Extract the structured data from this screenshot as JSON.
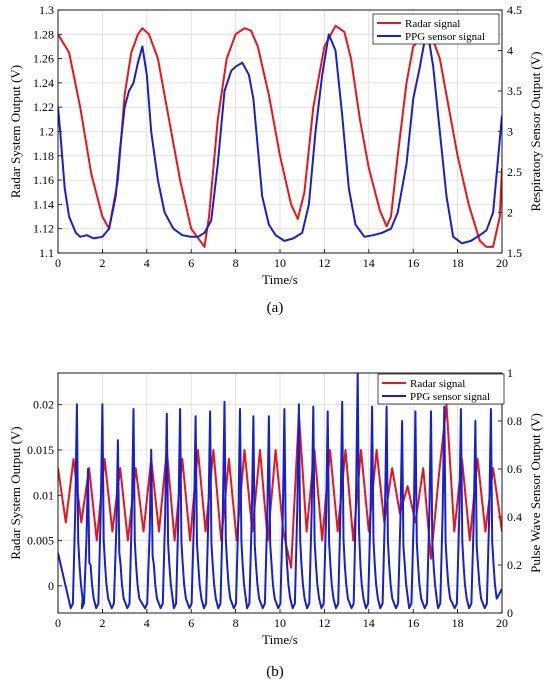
{
  "colors": {
    "radar": "#e8161b",
    "ppg": "#1620d0",
    "frame": "#000000",
    "grid": "#dcdcdc"
  },
  "chart_data": [
    {
      "panel_label": "(a)",
      "type": "line",
      "grid": true,
      "legend_position": "top-right",
      "xlabel": "Time/s",
      "ylabel_left": "Radar System Output (V)",
      "ylabel_right": "Respiratory Sensor Output (V)",
      "xlim": [
        0,
        20
      ],
      "ylim_left": [
        1.1,
        1.3
      ],
      "ylim_right": [
        1.5,
        4.5
      ],
      "xticks": [
        "0",
        "2",
        "4",
        "6",
        "8",
        "10",
        "12",
        "14",
        "16",
        "18",
        "20"
      ],
      "yticks_left": [
        "1.1",
        "1.12",
        "1.14",
        "1.16",
        "1.18",
        "1.2",
        "1.22",
        "1.24",
        "1.26",
        "1.28",
        "1.3"
      ],
      "yticks_right": [
        "1.5",
        "2",
        "2.5",
        "3",
        "3.5",
        "4",
        "4.5"
      ],
      "series": [
        {
          "name": "Radar signal",
          "axis": "left",
          "x": [
            0,
            0.5,
            1.0,
            1.5,
            2.0,
            2.3,
            2.7,
            3.0,
            3.3,
            3.6,
            3.8,
            4.1,
            4.5,
            5.0,
            5.5,
            6.0,
            6.4,
            6.6,
            6.8,
            7.2,
            7.6,
            8.0,
            8.4,
            8.7,
            9.0,
            9.5,
            10.0,
            10.5,
            10.8,
            11.1,
            11.5,
            12.0,
            12.5,
            12.9,
            13.2,
            13.6,
            14.0,
            14.5,
            14.8,
            15.0,
            15.3,
            15.7,
            16.0,
            16.5,
            16.9,
            17.2,
            17.6,
            18.0,
            18.5,
            19.0,
            19.3,
            19.6,
            19.9,
            20.0
          ],
          "y": [
            1.28,
            1.265,
            1.22,
            1.165,
            1.13,
            1.12,
            1.16,
            1.23,
            1.265,
            1.28,
            1.285,
            1.28,
            1.26,
            1.21,
            1.16,
            1.12,
            1.11,
            1.105,
            1.13,
            1.21,
            1.26,
            1.28,
            1.285,
            1.283,
            1.27,
            1.23,
            1.18,
            1.14,
            1.128,
            1.15,
            1.22,
            1.27,
            1.287,
            1.282,
            1.26,
            1.21,
            1.17,
            1.135,
            1.122,
            1.13,
            1.18,
            1.24,
            1.27,
            1.28,
            1.275,
            1.26,
            1.22,
            1.18,
            1.14,
            1.11,
            1.105,
            1.105,
            1.13,
            1.17
          ]
        },
        {
          "name": "PPG sensor signal",
          "axis": "right",
          "x": [
            0,
            0.1,
            0.3,
            0.5,
            0.8,
            1.0,
            1.3,
            1.6,
            2.0,
            2.3,
            2.6,
            2.8,
            3.0,
            3.2,
            3.4,
            3.6,
            3.8,
            4.0,
            4.2,
            4.5,
            4.8,
            5.2,
            5.6,
            6.0,
            6.3,
            6.6,
            6.9,
            7.2,
            7.5,
            7.8,
            8.0,
            8.3,
            8.6,
            8.8,
            9.0,
            9.2,
            9.5,
            9.8,
            10.2,
            10.6,
            11.0,
            11.3,
            11.6,
            11.9,
            12.2,
            12.5,
            12.8,
            13.1,
            13.4,
            13.8,
            14.2,
            14.6,
            15.0,
            15.3,
            15.7,
            16.0,
            16.3,
            16.5,
            16.7,
            16.9,
            17.2,
            17.5,
            17.8,
            18.2,
            18.6,
            19.0,
            19.3,
            19.6,
            19.8,
            20.0
          ],
          "y": [
            3.3,
            3.0,
            2.3,
            1.95,
            1.75,
            1.7,
            1.72,
            1.68,
            1.7,
            1.8,
            2.2,
            2.8,
            3.3,
            3.5,
            3.6,
            3.85,
            4.05,
            3.7,
            3.0,
            2.4,
            2.0,
            1.8,
            1.72,
            1.7,
            1.7,
            1.75,
            1.9,
            2.6,
            3.5,
            3.75,
            3.8,
            3.85,
            3.7,
            3.4,
            2.8,
            2.2,
            1.85,
            1.72,
            1.65,
            1.68,
            1.75,
            2.1,
            3.0,
            3.7,
            4.2,
            4.0,
            3.2,
            2.3,
            1.85,
            1.7,
            1.72,
            1.75,
            1.8,
            2.0,
            2.6,
            3.4,
            3.8,
            4.1,
            4.15,
            3.8,
            3.0,
            2.2,
            1.7,
            1.62,
            1.65,
            1.72,
            1.78,
            2.0,
            2.6,
            3.2
          ]
        }
      ]
    },
    {
      "panel_label": "(b)",
      "type": "line",
      "grid": true,
      "legend_position": "top-right",
      "xlabel": "Time/s",
      "ylabel_left": "Radar System Output (V)",
      "ylabel_right": "Pulse Wave Sensor Output (V)",
      "xlim": [
        0,
        20
      ],
      "ylim_left": [
        -0.003,
        0.0235
      ],
      "ylim_right": [
        0,
        1
      ],
      "xticks": [
        "0",
        "2",
        "4",
        "6",
        "8",
        "10",
        "12",
        "14",
        "16",
        "18",
        "20"
      ],
      "yticks_left_values": [
        0,
        0.005,
        0.01,
        0.015,
        0.02
      ],
      "yticks_left": [
        "0",
        "0.005",
        "0.01",
        "0.015",
        "0.02"
      ],
      "yticks_right": [
        "0",
        "0.2",
        "0.4",
        "0.6",
        "0.8",
        "1"
      ],
      "series": [
        {
          "name": "Radar signal",
          "axis": "left",
          "x": [
            0,
            0.35,
            0.7,
            1.05,
            1.4,
            1.75,
            2.1,
            2.45,
            2.8,
            3.15,
            3.5,
            3.85,
            4.2,
            4.55,
            4.9,
            5.25,
            5.6,
            5.95,
            6.3,
            6.65,
            7.0,
            7.35,
            7.7,
            8.05,
            8.4,
            8.75,
            9.1,
            9.45,
            9.8,
            10.15,
            10.5,
            10.85,
            11.2,
            11.55,
            11.9,
            12.25,
            12.6,
            12.95,
            13.3,
            13.65,
            14.0,
            14.35,
            14.7,
            15.05,
            15.4,
            15.75,
            16.1,
            16.45,
            16.8,
            17.15,
            17.5,
            17.85,
            18.2,
            18.55,
            18.9,
            19.25,
            19.6,
            20.0
          ],
          "y": [
            0.013,
            0.007,
            0.014,
            0.007,
            0.013,
            0.005,
            0.014,
            0.006,
            0.013,
            0.005,
            0.013,
            0.006,
            0.014,
            0.006,
            0.015,
            0.005,
            0.014,
            0.005,
            0.015,
            0.006,
            0.015,
            0.005,
            0.014,
            0.005,
            0.015,
            0.006,
            0.015,
            0.005,
            0.015,
            0.006,
            0.002,
            0.019,
            0.006,
            0.015,
            0.005,
            0.015,
            0.006,
            0.015,
            0.005,
            0.015,
            0.006,
            0.015,
            0.007,
            0.013,
            0.008,
            0.011,
            0.007,
            0.013,
            0.003,
            0.012,
            0.02,
            0.006,
            0.014,
            0.005,
            0.014,
            0.006,
            0.013,
            0.006
          ]
        },
        {
          "name": "PPG sensor signal",
          "axis": "right",
          "peaks_x": [
            0.85,
            1.35,
            2.0,
            2.7,
            3.4,
            4.2,
            4.9,
            5.5,
            6.2,
            6.85,
            7.5,
            8.2,
            8.8,
            9.5,
            10.2,
            10.85,
            11.5,
            12.15,
            12.8,
            13.5,
            14.15,
            14.8,
            15.5,
            16.1,
            16.8,
            17.4,
            18.15,
            18.8,
            19.5
          ],
          "peaks_y": [
            0.87,
            0.6,
            0.87,
            0.72,
            0.85,
            0.68,
            0.83,
            0.85,
            0.82,
            0.84,
            0.88,
            0.85,
            0.82,
            0.82,
            0.85,
            0.87,
            0.86,
            0.84,
            0.88,
            1.0,
            0.86,
            0.86,
            0.8,
            0.84,
            0.84,
            0.86,
            0.85,
            0.8,
            0.85
          ],
          "baseline": 0.02
        }
      ]
    }
  ]
}
